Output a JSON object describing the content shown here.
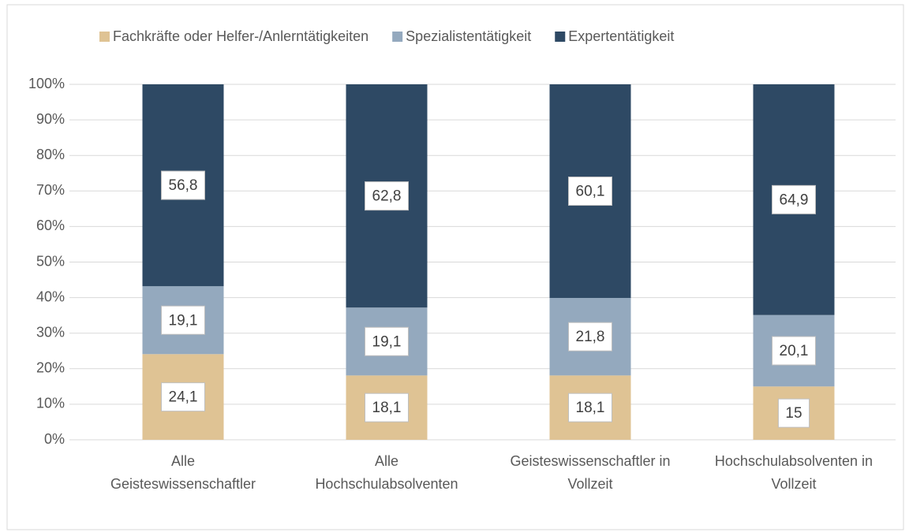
{
  "chart_data": {
    "type": "stacked_bar",
    "categories": [
      "Alle\nGeisteswissenschaftler",
      "Alle\nHochschulabsolventen",
      "Geisteswissenschaftler in\nVollzeit",
      "Hochschulabsolventen in\nVollzeit"
    ],
    "series": [
      {
        "name": "Fachkräfte oder Helfer-/Anlerntätigkeiten",
        "color": "#dfc394",
        "values": [
          24.1,
          18.1,
          18.1,
          15
        ],
        "value_labels": [
          "24,1",
          "18,1",
          "18,1",
          "15"
        ]
      },
      {
        "name": "Spezialistentätigkeit",
        "color": "#94a9be",
        "values": [
          19.1,
          19.1,
          21.8,
          20.1
        ],
        "value_labels": [
          "19,1",
          "19,1",
          "21,8",
          "20,1"
        ]
      },
      {
        "name": "Expertentätigkeit",
        "color": "#2e4964",
        "values": [
          56.8,
          62.8,
          60.1,
          64.9
        ],
        "value_labels": [
          "56,8",
          "62,8",
          "60,1",
          "64,9"
        ]
      }
    ],
    "ylim": [
      0,
      100
    ],
    "yticks": [
      {
        "value": 0,
        "label": "0%"
      },
      {
        "value": 10,
        "label": "10%"
      },
      {
        "value": 20,
        "label": "20%"
      },
      {
        "value": 30,
        "label": "30%"
      },
      {
        "value": 40,
        "label": "40%"
      },
      {
        "value": 50,
        "label": "50%"
      },
      {
        "value": 60,
        "label": "60%"
      },
      {
        "value": 70,
        "label": "70%"
      },
      {
        "value": 80,
        "label": "80%"
      },
      {
        "value": 90,
        "label": "90%"
      },
      {
        "value": 100,
        "label": "100%"
      }
    ],
    "grid": true,
    "legend": "top"
  }
}
